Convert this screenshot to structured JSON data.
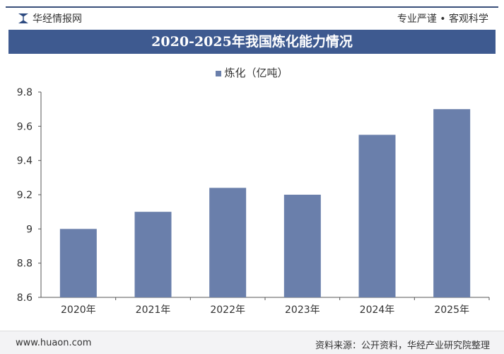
{
  "header": {
    "brand": "华经情报网",
    "slogan": "专业严谨 • 客观科学"
  },
  "footer": {
    "site": "www.huaon.com",
    "source": "资料来源：公开资料，华经产业研究院整理"
  },
  "chart_data": {
    "type": "bar",
    "title": "2020-2025年我国炼化能力情况",
    "categories": [
      "2020年",
      "2021年",
      "2022年",
      "2023年",
      "2024年",
      "2025年"
    ],
    "series": [
      {
        "name": "炼化（亿吨）",
        "values": [
          9.0,
          9.1,
          9.24,
          9.2,
          9.55,
          9.7
        ]
      }
    ],
    "ylim": [
      8.6,
      9.8
    ],
    "yticks": [
      "8.6",
      "8.8",
      "9",
      "9.2",
      "9.4",
      "9.6",
      "9.8"
    ],
    "grid": false,
    "legend": "top-center",
    "colors": {
      "bar": "#6a7fab",
      "title_band": "#3e5a90"
    }
  }
}
